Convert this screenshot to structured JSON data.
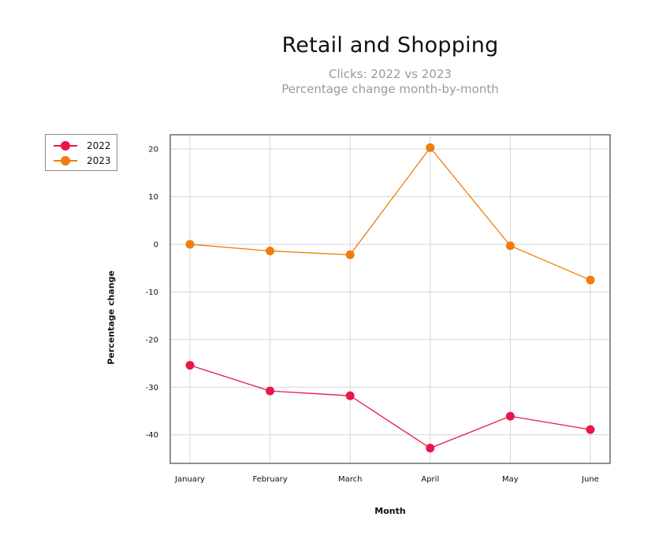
{
  "chart_data": {
    "type": "line",
    "title": "Retail and Shopping",
    "subtitle": [
      "Clicks: 2022 vs 2023",
      "Percentage change month-by-month"
    ],
    "xlabel": "Month",
    "ylabel": "Percentage change",
    "categories": [
      "January",
      "February",
      "March",
      "April",
      "May",
      "June"
    ],
    "ylim": [
      -46,
      23
    ],
    "yticks": [
      20,
      10,
      0,
      -10,
      -20,
      -30,
      -40
    ],
    "grid": true,
    "legend_position": "top-left outside",
    "series": [
      {
        "name": "2022",
        "color": "#e8174a",
        "values": [
          -25.4,
          -30.8,
          -31.8,
          -42.8,
          -36.1,
          -38.9
        ]
      },
      {
        "name": "2023",
        "color": "#f07d0e",
        "values": [
          0.0,
          -1.4,
          -2.2,
          20.3,
          -0.3,
          -7.5
        ]
      }
    ]
  }
}
